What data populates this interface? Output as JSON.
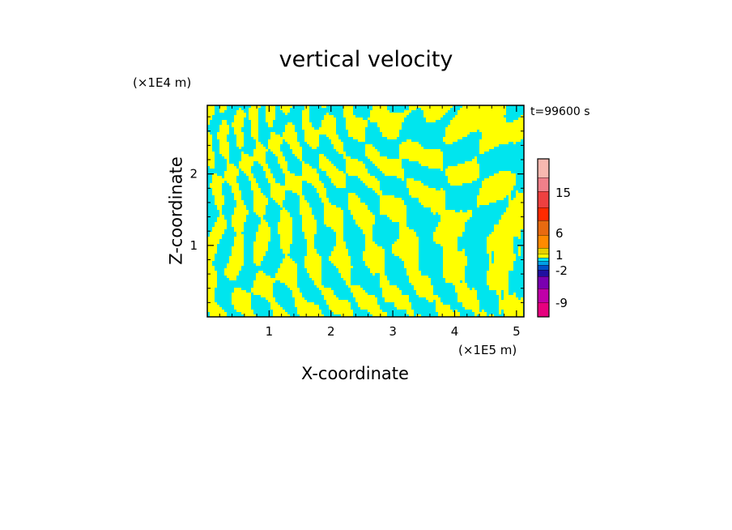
{
  "chart_data": {
    "type": "heatmap",
    "title": "vertical velocity",
    "xlabel": "X-coordinate",
    "ylabel": "Z-coordinate",
    "x_unit_label": "(×1E5 m)",
    "y_unit_label": "(×1E4 m)",
    "timestamp": "t=99600 s",
    "xlim": [
      0,
      5.12
    ],
    "ylim": [
      0,
      2.96
    ],
    "x_ticks": [
      "1",
      "2",
      "3",
      "4",
      "5"
    ],
    "x_tick_values": [
      1,
      2,
      3,
      4,
      5
    ],
    "y_ticks": [
      "1",
      "2"
    ],
    "y_tick_values": [
      1,
      2
    ],
    "field_colors": {
      "positive": "#ffff00",
      "negative": "#00e5ee"
    },
    "colorbar": {
      "bins_bottom_to_top": [
        "#e6007e",
        "#c000a8",
        "#7a00b0",
        "#2010a0",
        "#0050c8",
        "#00a0e6",
        "#00e5ee",
        "#ffff00",
        "#e8d000",
        "#ff8a00",
        "#e86a10",
        "#ff2a00",
        "#ee4040",
        "#f0808a",
        "#f8b8b0",
        "#fde0e0"
      ],
      "labels": [
        "-9",
        "-2",
        "1",
        "6",
        "15"
      ],
      "label_values": [
        -9,
        -2,
        1,
        6,
        15
      ]
    }
  }
}
